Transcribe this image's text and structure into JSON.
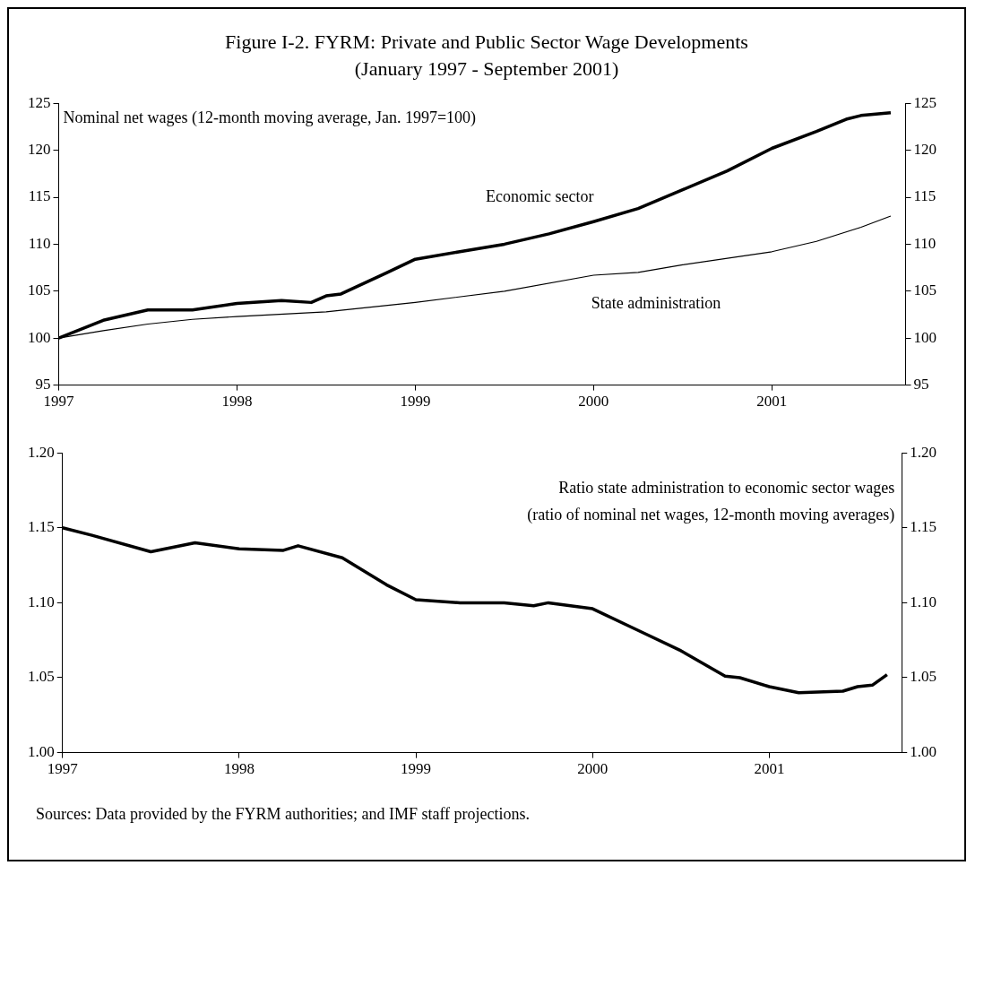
{
  "chart_data": [
    {
      "type": "line",
      "title": "Figure I-2. FYRM: Private and Public Sector Wage Developments\n(January 1997 - September 2001)",
      "annotations": [
        "Nominal net wages (12-month moving average, Jan. 1997=100)"
      ],
      "series": [
        {
          "name": "Economic sector",
          "color": "#000000",
          "x": [
            "1997-01",
            "1997-04",
            "1997-07",
            "1997-10",
            "1998-01",
            "1998-04",
            "1998-06",
            "1998-07",
            "1998-08",
            "1998-11",
            "1999-01",
            "1999-04",
            "1999-07",
            "1999-10",
            "2000-01",
            "2000-04",
            "2000-07",
            "2000-10",
            "2001-01",
            "2001-04",
            "2001-06",
            "2001-07",
            "2001-09"
          ],
          "values": [
            100,
            101.9,
            103,
            103,
            103.7,
            104,
            103.8,
            104.5,
            104.7,
            106.9,
            108.4,
            109.2,
            110,
            111.1,
            112.4,
            113.8,
            115.8,
            117.8,
            120.2,
            122,
            123.3,
            123.7,
            124
          ]
        },
        {
          "name": "State administration",
          "color": "#000000",
          "x": [
            "1997-01",
            "1997-04",
            "1997-07",
            "1997-10",
            "1998-01",
            "1998-07",
            "1999-01",
            "1999-07",
            "2000-01",
            "2000-04",
            "2000-07",
            "2001-01",
            "2001-04",
            "2001-07",
            "2001-09"
          ],
          "values": [
            100,
            100.8,
            101.5,
            102,
            102.3,
            102.8,
            103.8,
            105,
            106.7,
            107,
            107.8,
            109.2,
            110.3,
            111.8,
            113
          ]
        }
      ],
      "xlim": [
        "1997-01",
        "2001-10"
      ],
      "xticks": [
        "1997",
        "1998",
        "1999",
        "2000",
        "2001"
      ],
      "ylim": [
        95,
        125
      ],
      "yticks": [
        95,
        100,
        105,
        110,
        115,
        120,
        125
      ],
      "y2lim": [
        95,
        125
      ],
      "y2ticks": [
        95,
        100,
        105,
        110,
        115,
        120,
        125
      ],
      "grid": false,
      "legend": false,
      "line_style": "solid",
      "marker": "none"
    },
    {
      "type": "line",
      "annotations": [
        "Ratio state administration to economic sector wages\n(ratio of nominal net wages, 12-month moving averages)",
        "Sources: Data provided by the FYRM authorities; and IMF staff projections."
      ],
      "series": [
        {
          "color": "#000000",
          "x": [
            "1997-01",
            "1997-03",
            "1997-07",
            "1997-10",
            "1998-01",
            "1998-04",
            "1998-05",
            "1998-08",
            "1998-11",
            "1999-01",
            "1999-04",
            "1999-07",
            "1999-09",
            "1999-10",
            "2000-01",
            "2000-04",
            "2000-07",
            "2000-10",
            "2000-11",
            "2001-01",
            "2001-03",
            "2001-06",
            "2001-07",
            "2001-08",
            "2001-09"
          ],
          "values": [
            1.15,
            1.145,
            1.134,
            1.14,
            1.136,
            1.135,
            1.138,
            1.13,
            1.112,
            1.102,
            1.1,
            1.1,
            1.098,
            1.1,
            1.096,
            1.082,
            1.068,
            1.051,
            1.05,
            1.044,
            1.04,
            1.041,
            1.044,
            1.045,
            1.052
          ]
        }
      ],
      "xlim": [
        "1997-01",
        "2001-10"
      ],
      "xticks": [
        "1997",
        "1998",
        "1999",
        "2000",
        "2001"
      ],
      "ylim": [
        1.0,
        1.2
      ],
      "yticks": [
        {
          "value": 1.0,
          "label": "1.00"
        },
        {
          "value": 1.05,
          "label": "1.05"
        },
        {
          "value": 1.1,
          "label": "1.10"
        },
        {
          "value": 1.15,
          "label": "1.15"
        },
        {
          "value": 1.2,
          "label": "1.20"
        }
      ],
      "y2lim": [
        1.0,
        1.2
      ],
      "y2ticks": [
        {
          "value": 1.0,
          "label": "1.00"
        },
        {
          "value": 1.05,
          "label": "1.05"
        },
        {
          "value": 1.1,
          "label": "1.10"
        },
        {
          "value": 1.15,
          "label": "1.15"
        },
        {
          "value": 1.2,
          "label": "1.20"
        }
      ],
      "grid": false,
      "legend": false,
      "line_style": "solid",
      "marker": "none"
    }
  ]
}
